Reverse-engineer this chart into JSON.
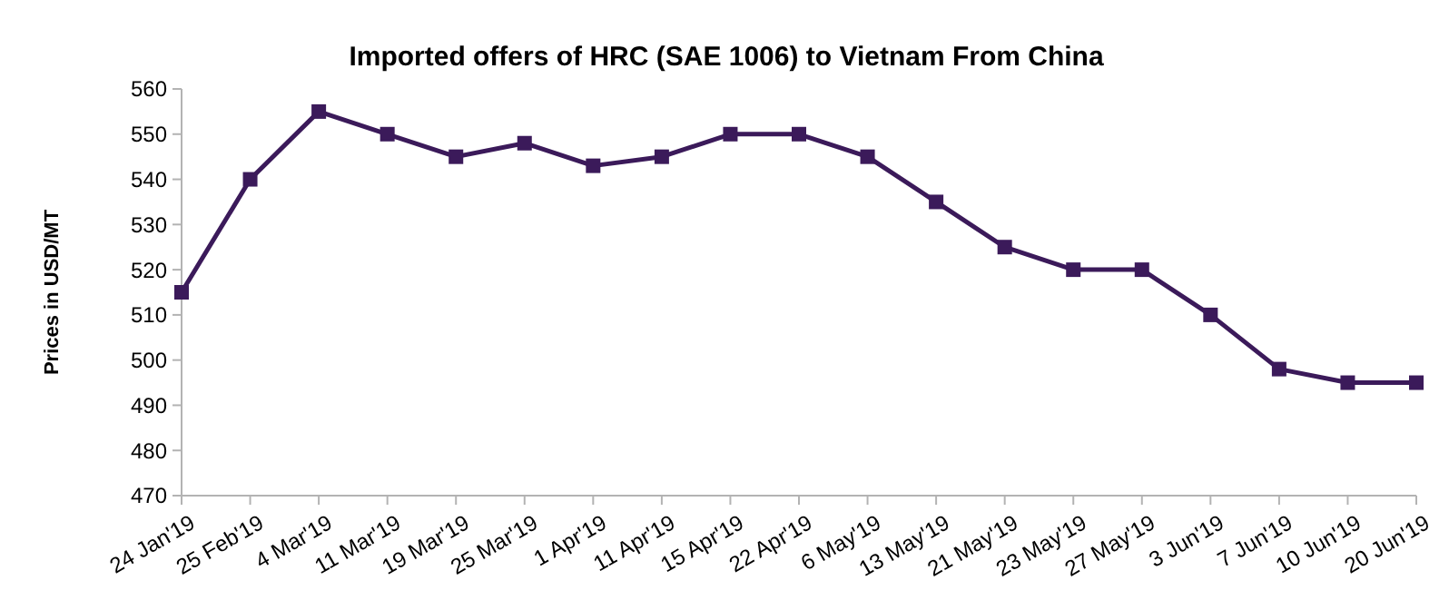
{
  "chart_data": {
    "type": "line",
    "title": "Imported offers of HRC (SAE 1006) to Vietnam From China",
    "ylabel": "Prices in USD/MT",
    "categories": [
      "24 Jan'19",
      "25 Feb'19",
      "4 Mar'19",
      "11 Mar'19",
      "19 Mar'19",
      "25 Mar'19",
      "1 Apr'19",
      "11 Apr'19",
      "15 Apr'19",
      "22 Apr'19",
      "6 May'19",
      "13 May'19",
      "21 May'19",
      "23 May'19",
      "27 May'19",
      "3 Jun'19",
      "7 Jun'19",
      "10 Jun'19",
      "20 Jun'19"
    ],
    "series": [
      {
        "color": "#3b1a5a",
        "values": [
          515,
          540,
          555,
          550,
          545,
          548,
          543,
          545,
          550,
          550,
          545,
          535,
          525,
          520,
          520,
          510,
          498,
          495,
          495
        ]
      }
    ],
    "ylim": [
      470,
      560
    ],
    "yticks": [
      470,
      480,
      490,
      500,
      510,
      520,
      530,
      540,
      550,
      560
    ],
    "marker": "square",
    "line_style": "solid"
  }
}
